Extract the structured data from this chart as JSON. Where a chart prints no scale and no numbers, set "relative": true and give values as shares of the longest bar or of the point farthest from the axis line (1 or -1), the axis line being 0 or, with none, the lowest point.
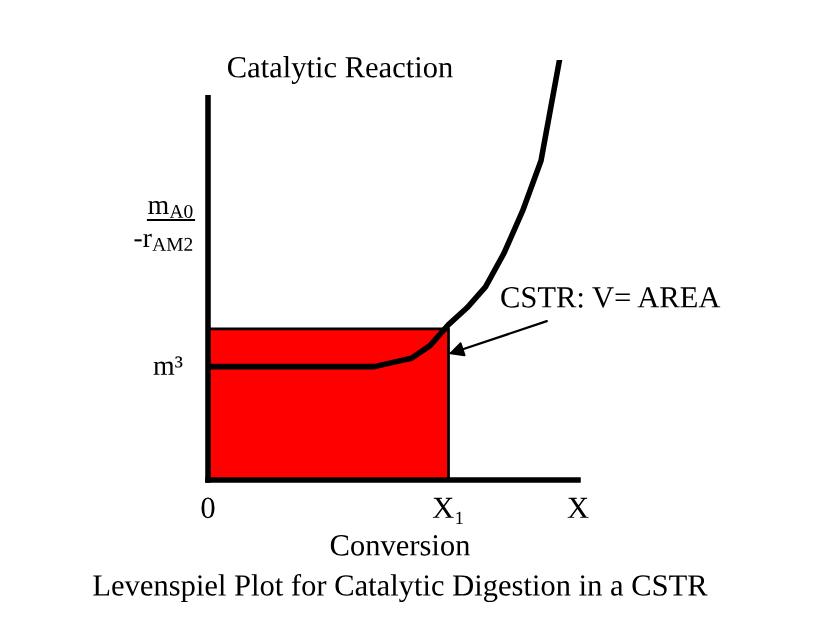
{
  "chart_data": {
    "type": "line",
    "title": "Catalytic Reaction",
    "xlabel": "Conversion",
    "ylabel": "m$_{A0}$\n-r$_{AM2}$",
    "relative": true,
    "categories": [
      "0",
      null,
      null,
      null,
      null,
      null,
      null,
      null,
      null,
      null,
      null,
      null,
      null,
      "X₁",
      null,
      null,
      null,
      null,
      null,
      null,
      "X"
    ],
    "series": [
      {
        "type": "area",
        "color": "#ff0000",
        "values": [
          0.36,
          0.36,
          0.36,
          0.36,
          0.36,
          0.36,
          0.36,
          0.36,
          0.36,
          0.36,
          0.36,
          0.36,
          0.36,
          0.36,
          null,
          null,
          null,
          null,
          null,
          null,
          null
        ]
      },
      {
        "color": "#000000",
        "values": [
          0.27,
          0.27,
          0.27,
          0.27,
          0.27,
          0.27,
          0.27,
          0.27,
          0.27,
          0.27,
          0.28,
          0.29,
          0.32,
          0.37,
          0.41,
          0.46,
          0.54,
          0.64,
          0.76,
          1,
          null
        ]
      }
    ],
    "annotations": [
      "m³",
      {
        "text": "CSTR: V= AREA",
        "x": "X₁",
        "y": 0.3
      },
      "Levenspiel Plot for Catalytic Digestion in a CSTR"
    ],
    "grid": false
  }
}
